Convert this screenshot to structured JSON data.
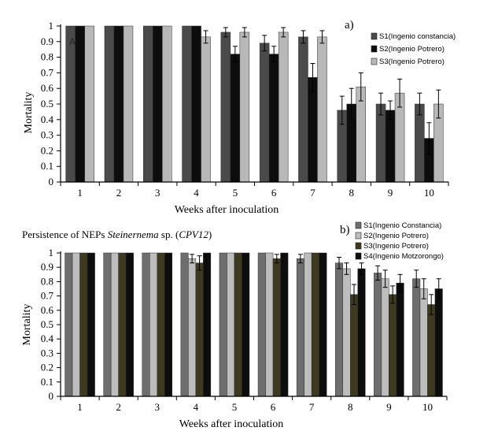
{
  "figure": {
    "title_prefix": "Persistence of  NEPs ",
    "title_italic": "Steinernema",
    "title_middle": " sp. (",
    "title_strain": "CPV12",
    "title_suffix": ")"
  },
  "chart_data": [
    {
      "type": "bar",
      "panel_label": "a)",
      "corner_label": "A",
      "xlabel": "Weeks after inoculation",
      "ylabel": "Mortality",
      "ylim": [
        0,
        1
      ],
      "yticks": [
        "0",
        "0.1",
        "0.2",
        "0.3",
        "0.4",
        "0.5",
        "0.6",
        "0.7",
        "0.8",
        "0.9",
        "1"
      ],
      "categories": [
        "1",
        "2",
        "3",
        "4",
        "5",
        "6",
        "7",
        "8",
        "9",
        "10"
      ],
      "series": [
        {
          "name": "S1(Ingenio constancia)",
          "color": "#4a4a4a",
          "values": [
            1,
            1,
            1,
            1,
            0.96,
            0.89,
            0.93,
            0.46,
            0.5,
            0.5
          ],
          "errors": [
            0,
            0,
            0,
            0,
            0.03,
            0.05,
            0.04,
            0.09,
            0.07,
            0.07
          ]
        },
        {
          "name": "S2(Ingenio Potrero)",
          "color": "#0d0d0d",
          "values": [
            1,
            1,
            1,
            1,
            0.82,
            0.82,
            0.67,
            0.5,
            0.46,
            0.28
          ],
          "errors": [
            0,
            0,
            0,
            0,
            0.05,
            0.05,
            0.09,
            0.1,
            0.06,
            0.1
          ]
        },
        {
          "name": "S3(Ingenio Potrero)",
          "color": "#b8b8b8",
          "values": [
            1,
            1,
            1,
            0.93,
            0.96,
            0.96,
            0.93,
            0.61,
            0.57,
            0.5
          ],
          "errors": [
            0,
            0,
            0,
            0.04,
            0.03,
            0.03,
            0.04,
            0.09,
            0.09,
            0.09
          ]
        }
      ]
    },
    {
      "type": "bar",
      "panel_label": "b)",
      "xlabel": "Weeks after inoculation",
      "ylabel": "Mortality",
      "ylim": [
        0,
        1
      ],
      "yticks": [
        "0",
        "0.1",
        "0.2",
        "0.3",
        "0.4",
        "0.5",
        "0.6",
        "0.7",
        "0.8",
        "0.9",
        "1"
      ],
      "categories": [
        "1",
        "2",
        "3",
        "4",
        "5",
        "6",
        "7",
        "8",
        "9",
        "10"
      ],
      "series": [
        {
          "name": "S1(Ingenio Constancia)",
          "color": "#6e6e6e",
          "values": [
            1,
            1,
            1,
            1,
            1,
            1,
            0.96,
            0.93,
            0.86,
            0.82
          ],
          "errors": [
            0,
            0,
            0,
            0,
            0,
            0,
            0.03,
            0.04,
            0.05,
            0.06
          ]
        },
        {
          "name": "S2(Ingenio Potrero)",
          "color": "#bdbdbd",
          "values": [
            1,
            1,
            1,
            0.96,
            1,
            1,
            1,
            0.89,
            0.82,
            0.75
          ],
          "errors": [
            0,
            0,
            0,
            0.03,
            0,
            0,
            0,
            0.04,
            0.06,
            0.07
          ]
        },
        {
          "name": "S3(Ingenio Potrero)",
          "color": "#3e3a22",
          "values": [
            1,
            1,
            1,
            0.93,
            1,
            0.96,
            1,
            0.71,
            0.71,
            0.64
          ],
          "errors": [
            0,
            0,
            0,
            0.05,
            0,
            0.03,
            0,
            0.07,
            0.06,
            0.07
          ]
        },
        {
          "name": "S4(Ingenio Motzorongo)",
          "color": "#0d0d0d",
          "values": [
            1,
            1,
            1,
            1,
            1,
            1,
            1,
            0.89,
            0.79,
            0.75
          ],
          "errors": [
            0,
            0,
            0,
            0,
            0,
            0,
            0,
            0.04,
            0.06,
            0.07
          ]
        }
      ]
    }
  ]
}
